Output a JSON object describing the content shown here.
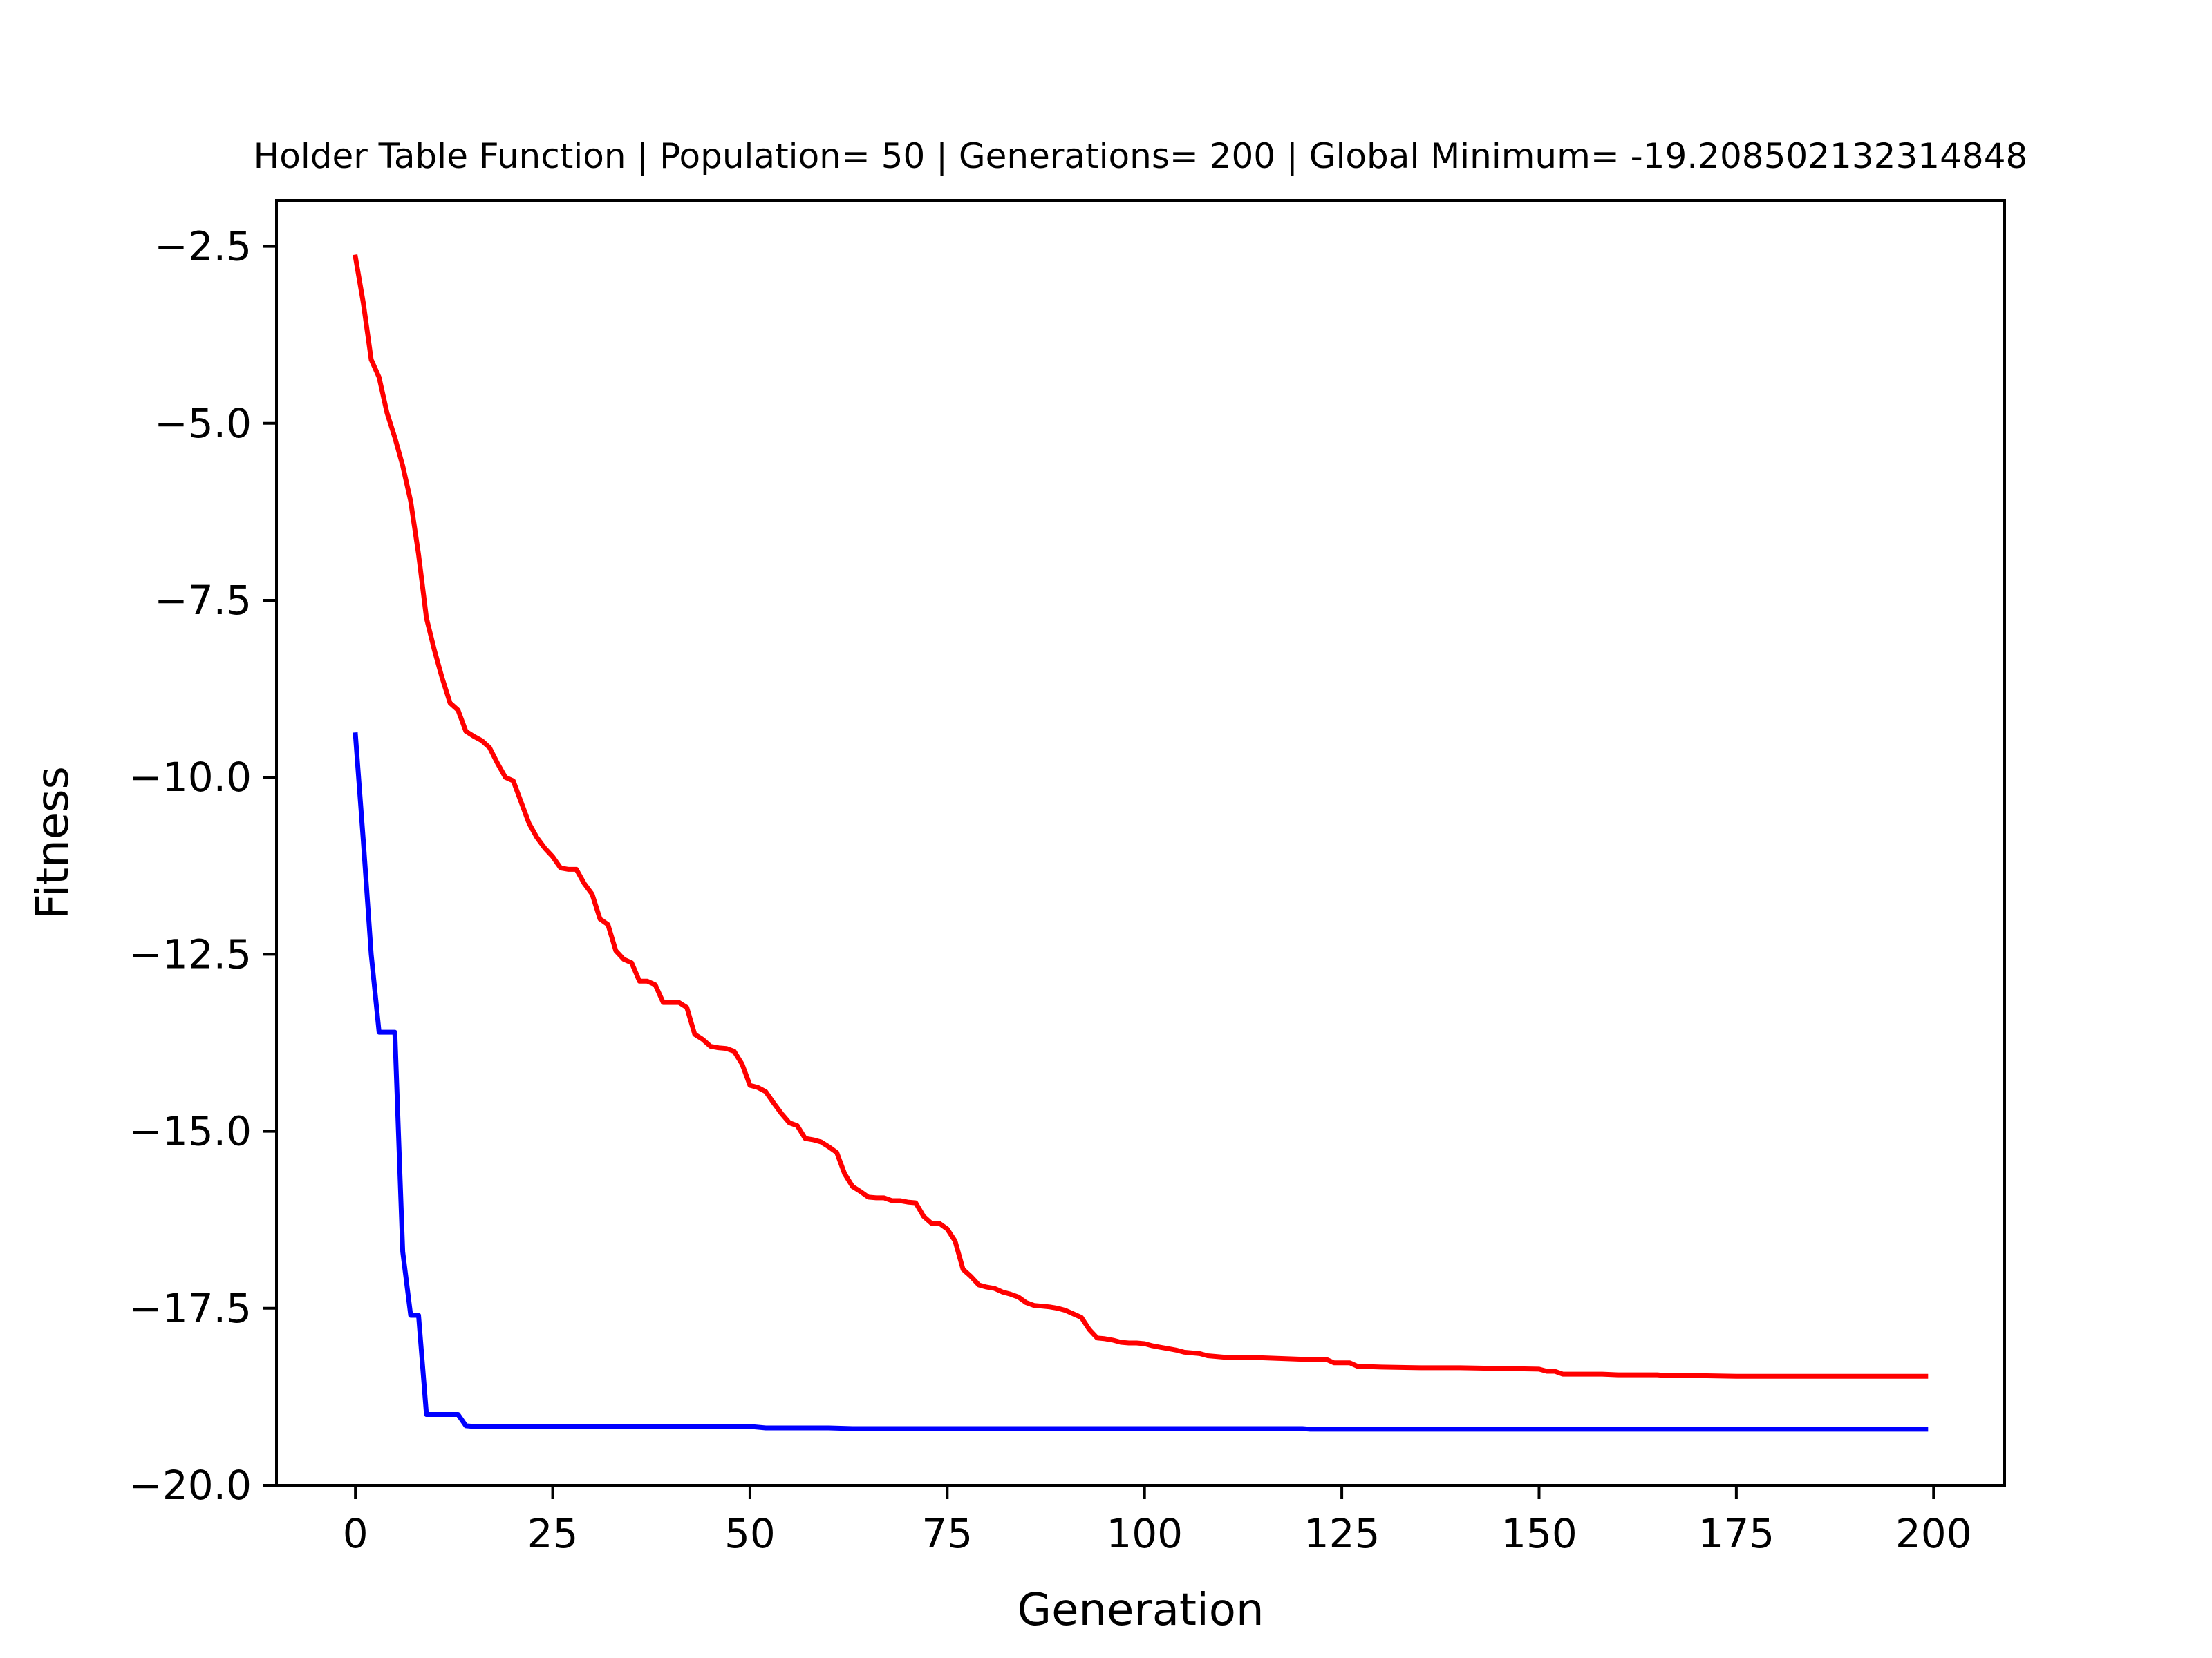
{
  "chart_data": {
    "type": "line",
    "title": "Holder Table Function | Population= 50 | Generations= 200 | Global Minimum= -19.208502132314848",
    "xlabel": "Generation",
    "ylabel": "Fitness",
    "xlim": [
      -10,
      209
    ],
    "ylim": [
      -20.0,
      -1.85
    ],
    "xticks": [
      0,
      25,
      50,
      75,
      100,
      125,
      150,
      175,
      200
    ],
    "xtick_labels": [
      "0",
      "25",
      "50",
      "75",
      "100",
      "125",
      "150",
      "175",
      "200"
    ],
    "yticks": [
      -2.5,
      -5.0,
      -7.5,
      -10.0,
      -12.5,
      -15.0,
      -17.5,
      -20.0
    ],
    "ytick_labels": [
      "−2.5",
      "−5.0",
      "−7.5",
      "−10.0",
      "−12.5",
      "−15.0",
      "−17.5",
      "−20.0"
    ],
    "grid": false,
    "legend": "none",
    "series": [
      {
        "color": "#ff0000",
        "points": [
          [
            0,
            -2.65
          ],
          [
            1,
            -3.3
          ],
          [
            2,
            -4.1
          ],
          [
            3,
            -4.35
          ],
          [
            4,
            -4.85
          ],
          [
            5,
            -5.2
          ],
          [
            6,
            -5.6
          ],
          [
            7,
            -6.1
          ],
          [
            8,
            -6.85
          ],
          [
            9,
            -7.75
          ],
          [
            10,
            -8.2
          ],
          [
            11,
            -8.6
          ],
          [
            12,
            -8.95
          ],
          [
            13,
            -9.05
          ],
          [
            14,
            -9.35
          ],
          [
            15,
            -9.42
          ],
          [
            16,
            -9.48
          ],
          [
            17,
            -9.58
          ],
          [
            18,
            -9.8
          ],
          [
            19,
            -10.0
          ],
          [
            20,
            -10.05
          ],
          [
            21,
            -10.35
          ],
          [
            22,
            -10.65
          ],
          [
            23,
            -10.85
          ],
          [
            24,
            -11.0
          ],
          [
            25,
            -11.12
          ],
          [
            26,
            -11.28
          ],
          [
            27,
            -11.3
          ],
          [
            28,
            -11.3
          ],
          [
            29,
            -11.5
          ],
          [
            30,
            -11.65
          ],
          [
            31,
            -12.0
          ],
          [
            32,
            -12.08
          ],
          [
            33,
            -12.45
          ],
          [
            34,
            -12.57
          ],
          [
            35,
            -12.62
          ],
          [
            36,
            -12.88
          ],
          [
            37,
            -12.88
          ],
          [
            38,
            -12.93
          ],
          [
            39,
            -13.18
          ],
          [
            40,
            -13.18
          ],
          [
            41,
            -13.18
          ],
          [
            42,
            -13.25
          ],
          [
            43,
            -13.63
          ],
          [
            44,
            -13.7
          ],
          [
            45,
            -13.8
          ],
          [
            46,
            -13.82
          ],
          [
            47,
            -13.83
          ],
          [
            48,
            -13.87
          ],
          [
            49,
            -14.05
          ],
          [
            50,
            -14.35
          ],
          [
            51,
            -14.38
          ],
          [
            52,
            -14.44
          ],
          [
            53,
            -14.6
          ],
          [
            54,
            -14.75
          ],
          [
            55,
            -14.88
          ],
          [
            56,
            -14.92
          ],
          [
            57,
            -15.1
          ],
          [
            58,
            -15.12
          ],
          [
            59,
            -15.15
          ],
          [
            60,
            -15.22
          ],
          [
            61,
            -15.3
          ],
          [
            62,
            -15.6
          ],
          [
            63,
            -15.78
          ],
          [
            64,
            -15.85
          ],
          [
            65,
            -15.93
          ],
          [
            66,
            -15.94
          ],
          [
            67,
            -15.94
          ],
          [
            68,
            -15.98
          ],
          [
            69,
            -15.98
          ],
          [
            70,
            -16.0
          ],
          [
            71,
            -16.01
          ],
          [
            72,
            -16.2
          ],
          [
            73,
            -16.3
          ],
          [
            74,
            -16.3
          ],
          [
            75,
            -16.38
          ],
          [
            76,
            -16.55
          ],
          [
            77,
            -16.95
          ],
          [
            78,
            -17.05
          ],
          [
            79,
            -17.17
          ],
          [
            80,
            -17.2
          ],
          [
            81,
            -17.22
          ],
          [
            82,
            -17.27
          ],
          [
            83,
            -17.3
          ],
          [
            84,
            -17.34
          ],
          [
            85,
            -17.42
          ],
          [
            86,
            -17.46
          ],
          [
            87,
            -17.47
          ],
          [
            88,
            -17.48
          ],
          [
            89,
            -17.5
          ],
          [
            90,
            -17.53
          ],
          [
            91,
            -17.58
          ],
          [
            92,
            -17.63
          ],
          [
            93,
            -17.8
          ],
          [
            94,
            -17.92
          ],
          [
            95,
            -17.93
          ],
          [
            96,
            -17.95
          ],
          [
            97,
            -17.98
          ],
          [
            98,
            -17.99
          ],
          [
            99,
            -17.99
          ],
          [
            100,
            -18.0
          ],
          [
            101,
            -18.03
          ],
          [
            102,
            -18.05
          ],
          [
            103,
            -18.07
          ],
          [
            104,
            -18.09
          ],
          [
            105,
            -18.12
          ],
          [
            106,
            -18.13
          ],
          [
            107,
            -18.14
          ],
          [
            108,
            -18.17
          ],
          [
            110,
            -18.19
          ],
          [
            115,
            -18.2
          ],
          [
            120,
            -18.22
          ],
          [
            123,
            -18.22
          ],
          [
            124,
            -18.27
          ],
          [
            126,
            -18.27
          ],
          [
            127,
            -18.32
          ],
          [
            130,
            -18.33
          ],
          [
            135,
            -18.34
          ],
          [
            140,
            -18.34
          ],
          [
            145,
            -18.35
          ],
          [
            150,
            -18.36
          ],
          [
            151,
            -18.39
          ],
          [
            152,
            -18.39
          ],
          [
            153,
            -18.43
          ],
          [
            158,
            -18.43
          ],
          [
            160,
            -18.44
          ],
          [
            165,
            -18.44
          ],
          [
            166,
            -18.45
          ],
          [
            170,
            -18.45
          ],
          [
            175,
            -18.46
          ],
          [
            185,
            -18.46
          ],
          [
            190,
            -18.46
          ],
          [
            199,
            -18.46
          ]
        ]
      },
      {
        "color": "#0000ff",
        "points": [
          [
            0,
            -9.4
          ],
          [
            1,
            -10.9
          ],
          [
            2,
            -12.5
          ],
          [
            3,
            -13.6
          ],
          [
            4,
            -13.6
          ],
          [
            5,
            -13.6
          ],
          [
            6,
            -16.7
          ],
          [
            7,
            -17.6
          ],
          [
            8,
            -17.6
          ],
          [
            9,
            -19.0
          ],
          [
            10,
            -19.0
          ],
          [
            11,
            -19.0
          ],
          [
            12,
            -19.0
          ],
          [
            13,
            -19.0
          ],
          [
            14,
            -19.16
          ],
          [
            15,
            -19.17
          ],
          [
            20,
            -19.17
          ],
          [
            30,
            -19.17
          ],
          [
            40,
            -19.17
          ],
          [
            50,
            -19.17
          ],
          [
            52,
            -19.19
          ],
          [
            60,
            -19.19
          ],
          [
            63,
            -19.2
          ],
          [
            80,
            -19.2
          ],
          [
            100,
            -19.2
          ],
          [
            120,
            -19.2
          ],
          [
            121,
            -19.209
          ],
          [
            150,
            -19.209
          ],
          [
            199,
            -19.209
          ]
        ]
      }
    ]
  }
}
